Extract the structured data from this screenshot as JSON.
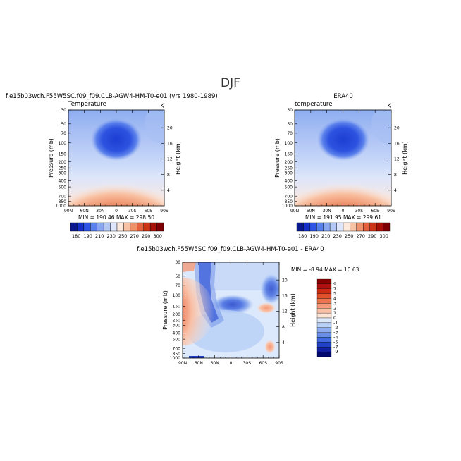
{
  "figure": {
    "title": "DJF",
    "panels": [
      {
        "id": "model",
        "title": "f.e15b03wch.F55W5SC.f09_f09.CLB-AGW4-HM-T0-e01 (yrs 1980-1989)",
        "left_label": "Temperature",
        "right_label": "K",
        "stats": "MIN = 190.46   MAX = 298.50",
        "fill": "temp"
      },
      {
        "id": "obs",
        "title": "ERA40",
        "left_label": "temperature",
        "right_label": "K",
        "stats": "MIN = 191.95   MAX = 299.61",
        "fill": "temp"
      },
      {
        "id": "diff",
        "title": "f.e15b03wch.F55W5SC.f09_f09.CLB-AGW4-HM-T0-e01 - ERA40",
        "left_label": "",
        "right_label": "",
        "stats": "MIN =  -8.94   MAX =  10.63",
        "fill": "diff"
      }
    ],
    "ylabel": "Pressure (mb)",
    "y2label": "Height (km)"
  },
  "chart_data": [
    {
      "type": "heatmap",
      "title": "f.e15b03wch.F55W5SC.f09_f09.CLB-AGW4-HM-T0-e01 (yrs 1980-1989)",
      "variable": "Temperature",
      "units": "K",
      "xlabel": "",
      "ylabel": "Pressure (mb)",
      "y2label": "Height (km)",
      "x_ticks": [
        "90N",
        "60N",
        "30N",
        "0",
        "30S",
        "60S",
        "90S"
      ],
      "x_tick_values": [
        90,
        60,
        30,
        0,
        -30,
        -60,
        -90
      ],
      "y_ticks": [
        "30",
        "50",
        "70",
        "100",
        "150",
        "200",
        "250",
        "300",
        "400",
        "500",
        "700",
        "850",
        "1000"
      ],
      "y_tick_values": [
        30,
        50,
        70,
        100,
        150,
        200,
        250,
        300,
        400,
        500,
        700,
        850,
        1000
      ],
      "y2_ticks": [
        "20",
        "16",
        "12",
        "8",
        "4"
      ],
      "y2_tick_values": [
        20,
        16,
        12,
        8,
        4
      ],
      "min": 190.46,
      "max": 298.5
    },
    {
      "type": "heatmap",
      "title": "ERA40",
      "variable": "temperature",
      "units": "K",
      "ylabel": "Pressure (mb)",
      "y2label": "Height (km)",
      "x_ticks": [
        "90N",
        "60N",
        "30N",
        "0",
        "30S",
        "60S",
        "90S"
      ],
      "x_tick_values": [
        90,
        60,
        30,
        0,
        -30,
        -60,
        -90
      ],
      "y_ticks": [
        "30",
        "50",
        "70",
        "100",
        "150",
        "200",
        "250",
        "300",
        "400",
        "500",
        "700",
        "850",
        "1000"
      ],
      "y_tick_values": [
        30,
        50,
        70,
        100,
        150,
        200,
        250,
        300,
        400,
        500,
        700,
        850,
        1000
      ],
      "y2_ticks": [
        "20",
        "16",
        "12",
        "8",
        "4"
      ],
      "y2_tick_values": [
        20,
        16,
        12,
        8,
        4
      ],
      "min": 191.95,
      "max": 299.61
    },
    {
      "type": "heatmap",
      "title": "f.e15b03wch.F55W5SC.f09_f09.CLB-AGW4-HM-T0-e01 - ERA40",
      "ylabel": "Pressure (mb)",
      "y2label": "Height (km)",
      "x_ticks": [
        "90N",
        "60N",
        "30N",
        "0",
        "30S",
        "60S",
        "90S"
      ],
      "x_tick_values": [
        90,
        60,
        30,
        0,
        -30,
        -60,
        -90
      ],
      "y_ticks": [
        "30",
        "50",
        "70",
        "100",
        "150",
        "200",
        "250",
        "300",
        "400",
        "500",
        "700",
        "850",
        "1000"
      ],
      "y_tick_values": [
        30,
        50,
        70,
        100,
        150,
        200,
        250,
        300,
        400,
        500,
        700,
        850,
        1000
      ],
      "y2_ticks": [
        "20",
        "16",
        "12",
        "8",
        "4"
      ],
      "y2_tick_values": [
        20,
        16,
        12,
        8,
        4
      ],
      "min": -8.94,
      "max": 10.63
    }
  ],
  "colorbars": {
    "temp": {
      "labels": [
        "180",
        "190",
        "210",
        "230",
        "250",
        "270",
        "290",
        "300"
      ],
      "colors": [
        "#0a1a8c",
        "#1530c8",
        "#2e55e6",
        "#5a80ee",
        "#8aa8f2",
        "#b4c8f6",
        "#dde6fb",
        "#fde8dc",
        "#f8c2a4",
        "#f0926c",
        "#e4613e",
        "#cc3418",
        "#a81008",
        "#7e0004"
      ]
    },
    "diff": {
      "labels": [
        "9",
        "7",
        "5",
        "4",
        "3",
        "2",
        "1",
        "0",
        "-1",
        "-2",
        "-3",
        "-4",
        "-5",
        "-7",
        "-9"
      ],
      "colors": [
        "#8a0000",
        "#b01010",
        "#cc2a14",
        "#e0502c",
        "#ec7450",
        "#f49a7a",
        "#f9c0a6",
        "#fde4d6",
        "#dce8fb",
        "#b8cff6",
        "#8eaef0",
        "#6a8ee8",
        "#4068e0",
        "#2040c8",
        "#1020a0",
        "#000870"
      ]
    }
  }
}
